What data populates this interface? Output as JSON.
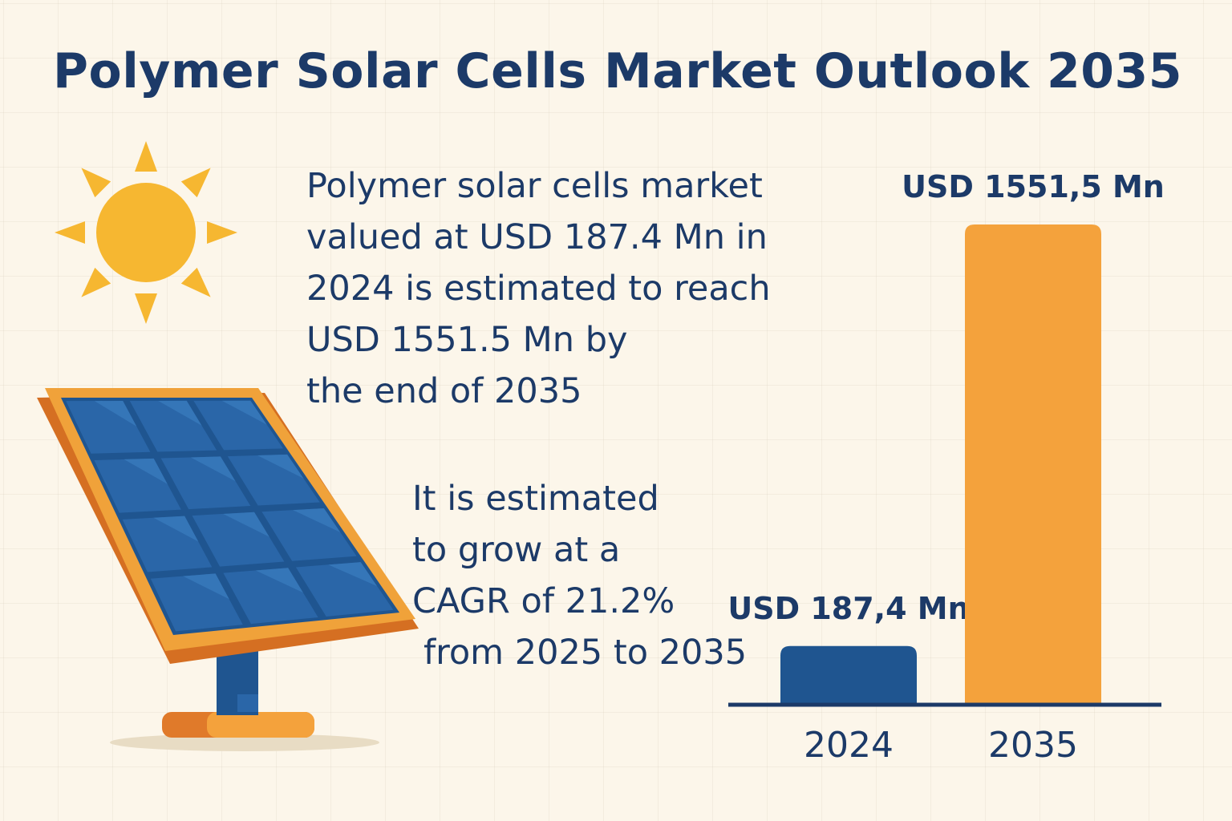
{
  "title": "Polymer Solar Cells Market Outlook 2035",
  "description_lines": [
    "Polymer solar cells market",
    "valued at USD 187.4 Mn in",
    "2024 is estimated to reach",
    "USD 1551.5 Mn by",
    "the end of 2035"
  ],
  "cagr_lines": [
    "It is estimated",
    "to grow at a",
    "CAGR of 21.2%",
    "from 2025 to 2035"
  ],
  "icons": [
    "sun-icon",
    "solar-panel-icon"
  ],
  "colors": {
    "background": "#fcf6ea",
    "text": "#1c3a68",
    "bar_2024": "#1f5590",
    "bar_2035": "#f4a23c",
    "sun": "#f6b731",
    "panel_frame": "#f0a23a",
    "panel_cell": "#2a66a8"
  },
  "chart_data": {
    "type": "bar",
    "categories": [
      "2024",
      "2035"
    ],
    "values": [
      187.4,
      1551.5
    ],
    "data_labels": [
      "USD 187,4 Mn",
      "USD 1551,5 Mn"
    ],
    "bar_colors": [
      "#1f5590",
      "#f4a23c"
    ],
    "ylim": [
      0,
      1551.5
    ],
    "grid": false,
    "legend": "none"
  }
}
